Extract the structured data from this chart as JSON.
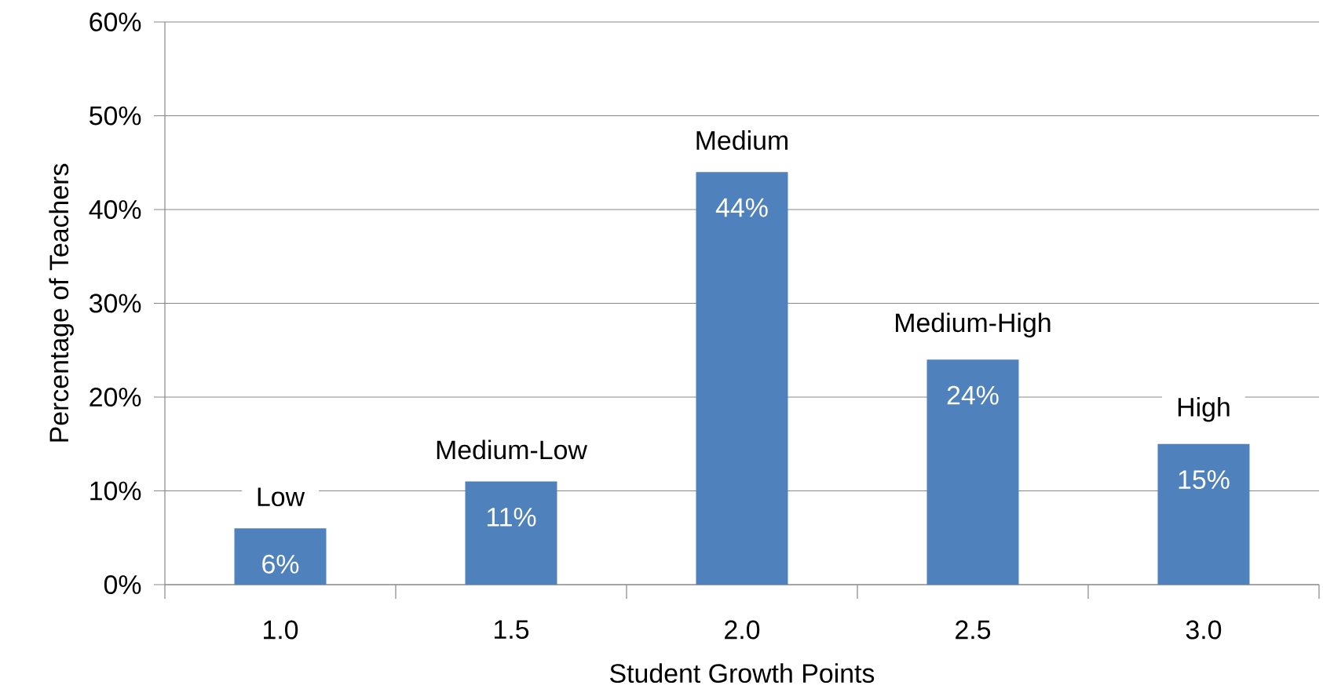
{
  "chart_data": {
    "type": "bar",
    "xlabel": "Student Growth Points",
    "ylabel": "Percentage of Teachers",
    "categories": [
      "1.0",
      "1.5",
      "2.0",
      "2.5",
      "3.0"
    ],
    "values": [
      6,
      11,
      44,
      24,
      15
    ],
    "value_labels": [
      "6%",
      "11%",
      "44%",
      "24%",
      "15%"
    ],
    "color": "#4f81bd",
    "ylim": [
      0,
      60
    ],
    "yticks": [
      {
        "value": 0,
        "label": "0%"
      },
      {
        "value": 10,
        "label": "10%"
      },
      {
        "value": 20,
        "label": "20%"
      },
      {
        "value": 30,
        "label": "30%"
      },
      {
        "value": 40,
        "label": "40%"
      },
      {
        "value": 50,
        "label": "50%"
      },
      {
        "value": 60,
        "label": "60%"
      }
    ],
    "grid": "y",
    "annotations": [
      {
        "text": "Low",
        "x": "1.0",
        "y": 6
      },
      {
        "text": "Medium-Low",
        "x": "1.5",
        "y": 11
      },
      {
        "text": "Medium",
        "x": "2.0",
        "y": 44
      },
      {
        "text": "Medium-High",
        "x": "2.5",
        "y": 24
      },
      {
        "text": "High",
        "x": "3.0",
        "y": 15
      }
    ]
  }
}
